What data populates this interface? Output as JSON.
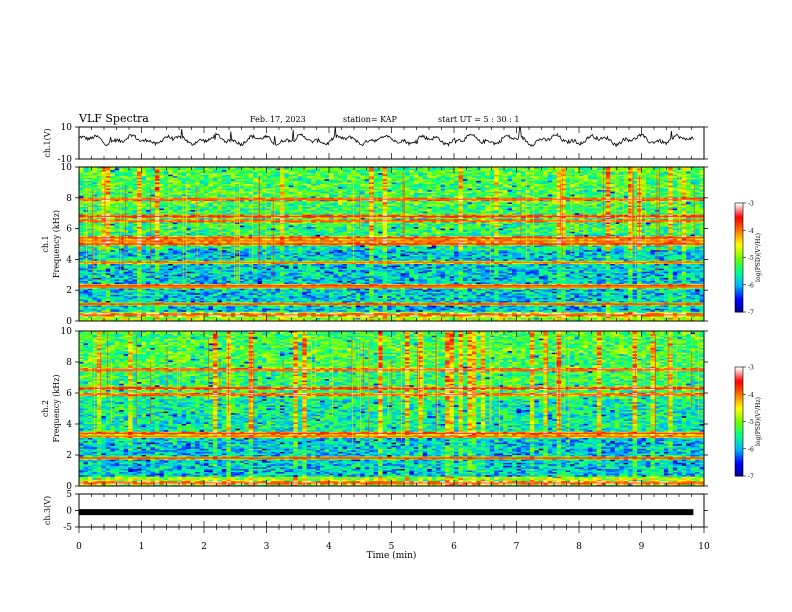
{
  "header": {
    "title": "VLF Spectra",
    "date": "Feb. 17, 2023",
    "station": "station= KAP",
    "start": "start  UT  =   5  : 30 : 1"
  },
  "chart_data": [
    {
      "type": "line",
      "panel": "ch1-waveform",
      "ylabel": "ch.1(V)",
      "ylim": [
        -10,
        10
      ],
      "yticks": [
        "10",
        "-10"
      ],
      "x_range_min": [
        0,
        9.83
      ],
      "baseline_V": 2,
      "amplitude_V": 3
    },
    {
      "type": "heatmap",
      "panel": "ch1-spectrogram",
      "ylabel": [
        "ch.1",
        "Frequency (kHz)"
      ],
      "ylim": [
        0,
        10
      ],
      "yticks": [
        "0",
        "2",
        "4",
        "6",
        "8",
        "10"
      ],
      "colorbar": {
        "label": "log(PSD)(V²/Hz)",
        "range": [
          -7,
          -3
        ],
        "ticks": [
          "-3",
          "-4",
          "-5",
          "-6",
          "-7"
        ]
      },
      "strong_lines_kHz": [
        0.4,
        1.1,
        2.2,
        2.3,
        3.8,
        5.0,
        5.2,
        5.4,
        6.5,
        6.8,
        7.9
      ]
    },
    {
      "type": "heatmap",
      "panel": "ch2-spectrogram",
      "ylabel": [
        "ch.2",
        "Frequency (kHz)"
      ],
      "ylim": [
        0,
        10
      ],
      "yticks": [
        "0",
        "2",
        "4",
        "6",
        "8",
        "10"
      ],
      "colorbar": {
        "label": "log(PSD)(V²/Hz)",
        "range": [
          -7,
          -3
        ],
        "ticks": [
          "-3",
          "-4",
          "-5",
          "-6",
          "-7"
        ]
      },
      "strong_lines_kHz": [
        0.2,
        1.8,
        3.2,
        3.4,
        5.9,
        6.3,
        7.5
      ]
    },
    {
      "type": "line",
      "panel": "ch3-waveform",
      "ylabel": "ch.3(V)",
      "ylim": [
        -5,
        5
      ],
      "yticks": [
        "5",
        "0",
        "-5"
      ],
      "value_V": -0.5
    }
  ],
  "xaxis": {
    "label": "Time (min)",
    "range": [
      0,
      10
    ],
    "ticks": [
      "0",
      "1",
      "2",
      "3",
      "4",
      "5",
      "6",
      "7",
      "8",
      "9",
      "10"
    ]
  },
  "colors": {
    "axis": "#000000",
    "trace": "#000000",
    "colormap": [
      "#00008c",
      "#0000ff",
      "#00b4ff",
      "#00ff90",
      "#6eff00",
      "#ffff00",
      "#ff7a00",
      "#ff0000",
      "#ffffff"
    ]
  }
}
